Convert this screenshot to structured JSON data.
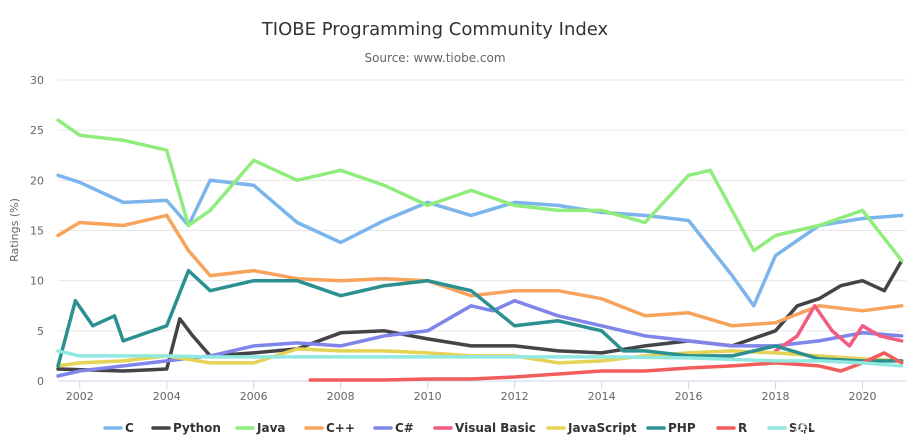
{
  "chart_data": {
    "type": "line",
    "title": "TIOBE Programming Community Index",
    "subtitle": "Source: www.tiobe.com",
    "ylabel": "Ratings (%)",
    "xlabel": "",
    "xlim": [
      2001.5,
      2021.0
    ],
    "ylim": [
      0,
      30
    ],
    "x_ticks": [
      2002,
      2004,
      2006,
      2008,
      2010,
      2012,
      2014,
      2016,
      2018,
      2020
    ],
    "y_ticks": [
      0,
      5,
      10,
      15,
      20,
      25,
      30
    ],
    "grid": true,
    "legend": "bottom",
    "series": [
      {
        "name": "C",
        "color": "#7cb5ec",
        "x": [
          2001.5,
          2002,
          2003,
          2004,
          2004.5,
          2005,
          2006,
          2007,
          2008,
          2009,
          2010,
          2011,
          2012,
          2013,
          2014,
          2015,
          2016,
          2017,
          2017.5,
          2018,
          2019,
          2020,
          2020.9
        ],
        "values": [
          20.5,
          19.8,
          17.8,
          18.0,
          15.5,
          20.0,
          19.5,
          15.8,
          13.8,
          16.0,
          17.8,
          16.5,
          17.8,
          17.5,
          16.8,
          16.5,
          16.0,
          10.5,
          7.5,
          12.5,
          15.5,
          16.2,
          16.5
        ]
      },
      {
        "name": "Python",
        "color": "#434348",
        "x": [
          2001.5,
          2003,
          2004,
          2004.3,
          2004.6,
          2005,
          2006,
          2007,
          2008,
          2009,
          2010,
          2011,
          2012,
          2013,
          2014,
          2015,
          2016,
          2017,
          2018,
          2018.5,
          2019,
          2019.5,
          2020,
          2020.5,
          2020.9
        ],
        "values": [
          1.2,
          1.0,
          1.2,
          6.2,
          4.5,
          2.5,
          2.8,
          3.2,
          4.8,
          5.0,
          4.2,
          3.5,
          3.5,
          3.0,
          2.8,
          3.5,
          4.0,
          3.5,
          5.0,
          7.5,
          8.2,
          9.5,
          10.0,
          9.0,
          12.0
        ]
      },
      {
        "name": "Java",
        "color": "#90ed7d",
        "x": [
          2001.5,
          2002,
          2003,
          2004,
          2004.5,
          2005,
          2006,
          2007,
          2008,
          2009,
          2010,
          2011,
          2012,
          2013,
          2014,
          2015,
          2016,
          2016.5,
          2017,
          2017.5,
          2018,
          2019,
          2020,
          2020.9
        ],
        "values": [
          26.0,
          24.5,
          24.0,
          23.0,
          15.5,
          17.0,
          22.0,
          20.0,
          21.0,
          19.5,
          17.5,
          19.0,
          17.5,
          17.0,
          17.0,
          15.8,
          20.5,
          21.0,
          17.0,
          13.0,
          14.5,
          15.5,
          17.0,
          12.0
        ]
      },
      {
        "name": "C++",
        "color": "#f7a35c",
        "x": [
          2001.5,
          2002,
          2003,
          2004,
          2004.5,
          2005,
          2006,
          2007,
          2008,
          2009,
          2010,
          2011,
          2012,
          2013,
          2014,
          2015,
          2016,
          2017,
          2018,
          2019,
          2020,
          2020.9
        ],
        "values": [
          14.5,
          15.8,
          15.5,
          16.5,
          13.0,
          10.5,
          11.0,
          10.2,
          10.0,
          10.2,
          10.0,
          8.5,
          9.0,
          9.0,
          8.2,
          6.5,
          6.8,
          5.5,
          5.8,
          7.5,
          7.0,
          7.5
        ]
      },
      {
        "name": "C#",
        "color": "#8085e9",
        "x": [
          2001.5,
          2002,
          2003,
          2004,
          2005,
          2006,
          2007,
          2008,
          2009,
          2010,
          2011,
          2011.5,
          2012,
          2013,
          2014,
          2015,
          2016,
          2017,
          2018,
          2019,
          2020,
          2020.9
        ],
        "values": [
          0.5,
          1.0,
          1.5,
          2.0,
          2.5,
          3.5,
          3.8,
          3.5,
          4.5,
          5.0,
          7.5,
          7.0,
          8.0,
          6.5,
          5.5,
          4.5,
          4.0,
          3.5,
          3.5,
          4.0,
          4.8,
          4.5
        ]
      },
      {
        "name": "Visual Basic",
        "color": "#f15c80",
        "x": [
          2018.0,
          2018.5,
          2018.9,
          2019.3,
          2019.7,
          2020.0,
          2020.4,
          2020.9
        ],
        "values": [
          3.0,
          4.5,
          7.5,
          5.0,
          3.5,
          5.5,
          4.5,
          4.0
        ]
      },
      {
        "name": "JavaScript",
        "color": "#e4d354",
        "x": [
          2001.5,
          2002,
          2003,
          2004,
          2005,
          2006,
          2007,
          2008,
          2009,
          2010,
          2011,
          2012,
          2013,
          2014,
          2015,
          2016,
          2017,
          2018,
          2019,
          2020,
          2020.9
        ],
        "values": [
          1.5,
          1.8,
          2.0,
          2.5,
          1.8,
          1.8,
          3.2,
          3.0,
          3.0,
          2.8,
          2.5,
          2.5,
          1.8,
          2.0,
          2.5,
          2.8,
          3.0,
          2.8,
          2.5,
          2.2,
          2.0
        ]
      },
      {
        "name": "PHP",
        "color": "#2b908f",
        "x": [
          2001.5,
          2001.9,
          2002.3,
          2002.8,
          2003,
          2004,
          2004.5,
          2005,
          2006,
          2007,
          2008,
          2009,
          2010,
          2011,
          2012,
          2013,
          2014,
          2014.5,
          2015,
          2016,
          2017,
          2018,
          2019,
          2020,
          2020.9
        ],
        "values": [
          1.5,
          8.0,
          5.5,
          6.5,
          4.0,
          5.5,
          11.0,
          9.0,
          10.0,
          10.0,
          8.5,
          9.5,
          10.0,
          9.0,
          5.5,
          6.0,
          5.0,
          3.0,
          3.0,
          2.5,
          2.5,
          3.5,
          2.2,
          2.0,
          2.0
        ]
      },
      {
        "name": "R",
        "color": "#f45b5b",
        "x": [
          2007.3,
          2008,
          2009,
          2010,
          2011,
          2012,
          2013,
          2014,
          2015,
          2016,
          2017,
          2018,
          2019,
          2019.5,
          2020,
          2020.5,
          2020.9
        ],
        "values": [
          0.1,
          0.1,
          0.1,
          0.2,
          0.2,
          0.4,
          0.7,
          1.0,
          1.0,
          1.3,
          1.5,
          1.8,
          1.5,
          1.0,
          1.8,
          2.8,
          1.8
        ]
      },
      {
        "name": "SQL",
        "color": "#91e8e1",
        "x": [
          2001.5,
          2002,
          2003,
          2004,
          2005,
          2006,
          2008,
          2010,
          2012,
          2014,
          2016,
          2018,
          2019,
          2020,
          2020.9
        ],
        "values": [
          3.0,
          2.5,
          2.5,
          2.5,
          2.4,
          2.4,
          2.4,
          2.4,
          2.4,
          2.4,
          2.3,
          2.0,
          2.0,
          1.8,
          1.5
        ]
      }
    ]
  },
  "watermark": "稀土掘金技术社区"
}
